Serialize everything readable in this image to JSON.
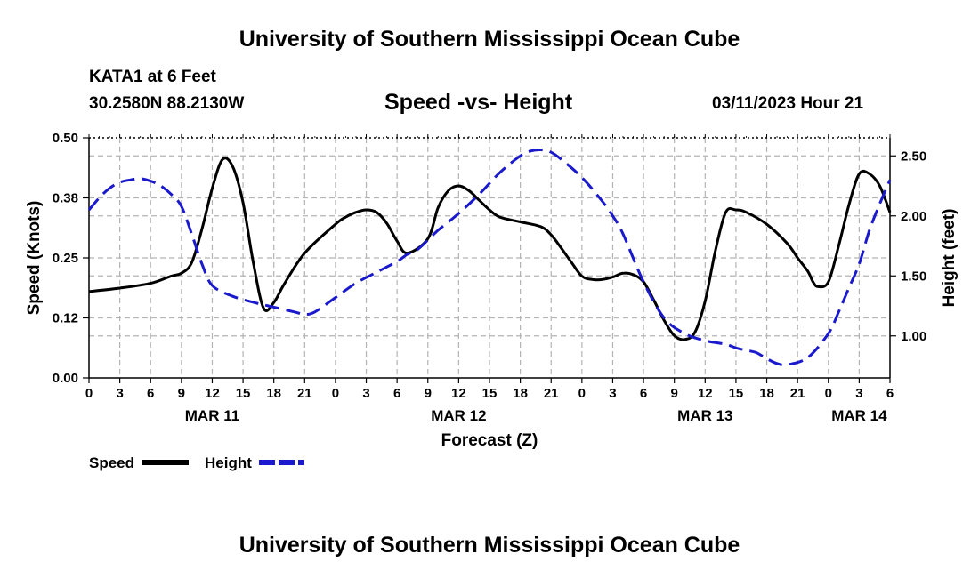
{
  "header": {
    "title_top": "University of Southern Mississippi Ocean Cube",
    "station": "KATA1 at 6 Feet",
    "coords": "30.2580N  88.2130W",
    "chart_title": "Speed -vs- Height",
    "datetime": "03/11/2023 Hour 21",
    "title_bottom": "University of Southern Mississippi Ocean Cube"
  },
  "chart_data": {
    "type": "line",
    "title": "Speed -vs- Height",
    "xlabel": "Forecast (Z)",
    "ylabel": "Speed (Knots)",
    "y2label": "Height (feet)",
    "xlim": [
      0,
      78
    ],
    "ylim": [
      0,
      0.5
    ],
    "y2lim": [
      0.65,
      2.65
    ],
    "x_ticks": [
      0,
      3,
      6,
      9,
      12,
      15,
      18,
      21,
      24,
      27,
      30,
      33,
      36,
      39,
      42,
      45,
      48,
      51,
      54,
      57,
      60,
      63,
      66,
      69,
      72,
      75,
      78
    ],
    "x_tick_labels": [
      "0",
      "3",
      "6",
      "9",
      "12",
      "15",
      "18",
      "21",
      "0",
      "3",
      "6",
      "9",
      "12",
      "15",
      "18",
      "21",
      "0",
      "3",
      "6",
      "9",
      "12",
      "15",
      "18",
      "21",
      "0",
      "3",
      "6"
    ],
    "date_labels": [
      {
        "x": 12,
        "label": "MAR 11"
      },
      {
        "x": 36,
        "label": "MAR 12"
      },
      {
        "x": 60,
        "label": "MAR 13"
      },
      {
        "x": 75,
        "label": "MAR 14"
      }
    ],
    "y_ticks": [
      0.0,
      0.125,
      0.25,
      0.375,
      0.5
    ],
    "y_tick_labels": [
      "0.00",
      "0.12",
      "0.25",
      "0.38",
      "0.50"
    ],
    "y2_ticks": [
      1.0,
      1.5,
      2.0,
      2.5
    ],
    "y2_tick_labels": [
      "1.00",
      "1.50",
      "2.00",
      "2.50"
    ],
    "grid": true,
    "legend_position": "bottom-left",
    "series": [
      {
        "name": "Speed",
        "axis": "left",
        "color": "#000000",
        "dash": "solid",
        "x": [
          0,
          3,
          6,
          8,
          9,
          10,
          11,
          12,
          13,
          14,
          15,
          16,
          17,
          18,
          19,
          21,
          24,
          25,
          26,
          27,
          28,
          29,
          30,
          31,
          33,
          34,
          35,
          36,
          37,
          38,
          39,
          40,
          42,
          44,
          45,
          46,
          47,
          48,
          49,
          50,
          51,
          52,
          53,
          54,
          55,
          56,
          57,
          58,
          59,
          60,
          61,
          62,
          63,
          64,
          66,
          68,
          69,
          70,
          70.5,
          71,
          72,
          73,
          74,
          75,
          76,
          77,
          78
        ],
        "values": [
          0.18,
          0.187,
          0.197,
          0.212,
          0.218,
          0.24,
          0.31,
          0.395,
          0.455,
          0.44,
          0.365,
          0.24,
          0.145,
          0.157,
          0.195,
          0.26,
          0.32,
          0.335,
          0.345,
          0.35,
          0.345,
          0.322,
          0.285,
          0.26,
          0.29,
          0.355,
          0.39,
          0.4,
          0.39,
          0.37,
          0.35,
          0.335,
          0.325,
          0.315,
          0.298,
          0.27,
          0.24,
          0.212,
          0.205,
          0.205,
          0.21,
          0.218,
          0.215,
          0.2,
          0.162,
          0.12,
          0.088,
          0.08,
          0.095,
          0.16,
          0.265,
          0.345,
          0.35,
          0.345,
          0.32,
          0.28,
          0.25,
          0.222,
          0.2,
          0.19,
          0.2,
          0.275,
          0.36,
          0.425,
          0.425,
          0.4,
          0.345
        ]
      },
      {
        "name": "Height",
        "axis": "right",
        "color": "#1a1acc",
        "dash": "dashed",
        "x": [
          0,
          1,
          2,
          3,
          4,
          5,
          6,
          7,
          8,
          9,
          10,
          11,
          12,
          14,
          16,
          18,
          20,
          21,
          22,
          24,
          26,
          28,
          30,
          31,
          32,
          34,
          36,
          38,
          40,
          42,
          43,
          44,
          45,
          46,
          48,
          50,
          51,
          52,
          54,
          56,
          58,
          60,
          62,
          63,
          64,
          65,
          66,
          67,
          68,
          70,
          72,
          73,
          74,
          75,
          76,
          77,
          78
        ],
        "values": [
          2.05,
          2.15,
          2.23,
          2.28,
          2.3,
          2.31,
          2.29,
          2.25,
          2.18,
          2.08,
          1.85,
          1.6,
          1.42,
          1.33,
          1.28,
          1.24,
          1.2,
          1.18,
          1.2,
          1.32,
          1.44,
          1.53,
          1.62,
          1.68,
          1.72,
          1.88,
          2.02,
          2.18,
          2.36,
          2.5,
          2.54,
          2.55,
          2.53,
          2.47,
          2.32,
          2.12,
          2.0,
          1.85,
          1.45,
          1.15,
          1.02,
          0.96,
          0.93,
          0.9,
          0.88,
          0.86,
          0.81,
          0.77,
          0.76,
          0.82,
          1.02,
          1.2,
          1.4,
          1.6,
          1.88,
          2.1,
          2.3
        ]
      }
    ],
    "legend": [
      {
        "label": "Speed",
        "color": "#000000",
        "dash": "solid"
      },
      {
        "label": "Height",
        "color": "#1a1acc",
        "dash": "dashed"
      }
    ]
  }
}
